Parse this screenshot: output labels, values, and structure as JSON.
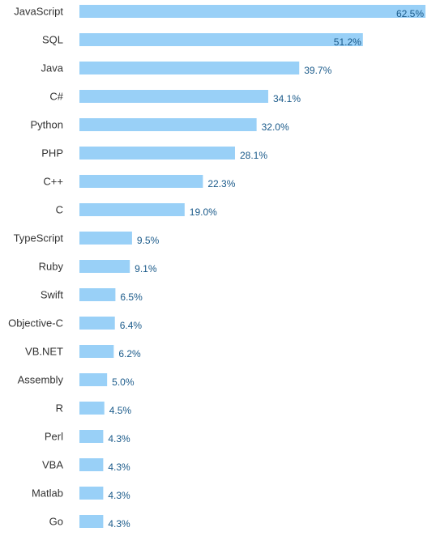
{
  "chart_data": {
    "type": "bar",
    "orientation": "horizontal",
    "categories": [
      "JavaScript",
      "SQL",
      "Java",
      "C#",
      "Python",
      "PHP",
      "C++",
      "C",
      "TypeScript",
      "Ruby",
      "Swift",
      "Objective-C",
      "VB.NET",
      "Assembly",
      "R",
      "Perl",
      "VBA",
      "Matlab",
      "Go"
    ],
    "values": [
      62.5,
      51.2,
      39.7,
      34.1,
      32.0,
      28.1,
      22.3,
      19.0,
      9.5,
      9.1,
      6.5,
      6.4,
      6.2,
      5.0,
      4.5,
      4.3,
      4.3,
      4.3,
      4.3
    ],
    "value_labels": [
      "62.5%",
      "51.2%",
      "39.7%",
      "34.1%",
      "32.0%",
      "28.1%",
      "22.3%",
      "19.0%",
      "9.5%",
      "9.1%",
      "6.5%",
      "6.4%",
      "6.2%",
      "5.0%",
      "4.5%",
      "4.3%",
      "4.3%",
      "4.3%",
      "4.3%"
    ],
    "title": "",
    "xlabel": "",
    "ylabel": "",
    "xlim": [
      0,
      62.5
    ],
    "grid": false,
    "legend": "none",
    "colors": {
      "bar": "#99d0f7",
      "value_text": "#1a5a8a",
      "label_text": "#333333"
    }
  }
}
